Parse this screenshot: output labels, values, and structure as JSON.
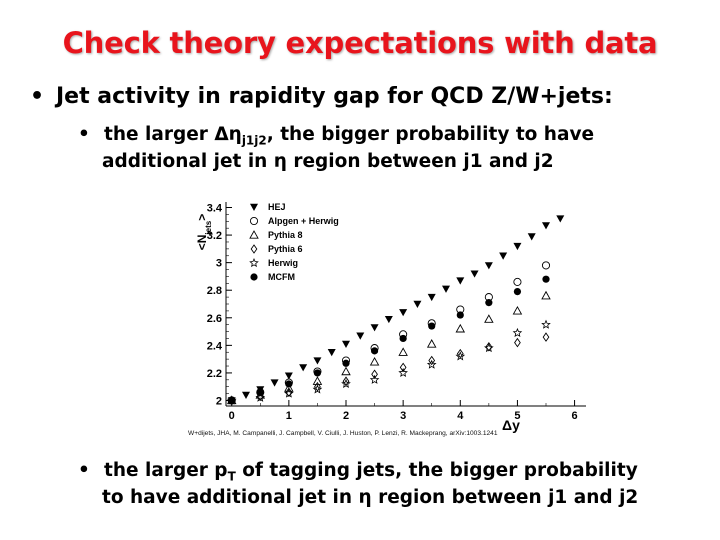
{
  "slide": {
    "title": "Check theory expectations with data",
    "bullet1": {
      "marker": "•",
      "text": "Jet activity in rapidity gap for QCD Z/W+jets:"
    },
    "bullet2": {
      "marker": "•",
      "pre": "the larger ",
      "symbol": "Δη",
      "sub": "j1j2",
      "post": ", the bigger probability to have",
      "line2": "additional jet  in η region between j1 and j2"
    },
    "bullet3": {
      "marker": "•",
      "pre": "the larger p",
      "sub": "T",
      "post": " of tagging jets, the bigger probability",
      "line2": "to have additional jet in η  region between j1 and j2"
    }
  },
  "chart_data": {
    "type": "scatter",
    "ylabel": "<N_jets>",
    "xlabel": "Δy",
    "xlim": [
      -0.1,
      6.2
    ],
    "ylim": [
      1.96,
      3.44
    ],
    "xticks": [
      "0",
      "1",
      "2",
      "3",
      "4",
      "5",
      "6"
    ],
    "yticks": [
      "2",
      "2.2",
      "2.4",
      "2.6",
      "2.8",
      "3",
      "3.2",
      "3.4"
    ],
    "legend_position": "top-left",
    "caption": "W+dijets, JHA, M. Campanelli, J. Campbell, V. Ciulli, J. Huston, P. Lenzi, R. Mackeprang, arXiv:1003.1241",
    "series": [
      {
        "name": "HEJ",
        "marker": "filled-triangle-down",
        "x": [
          0.0,
          0.25,
          0.5,
          0.75,
          1.0,
          1.25,
          1.5,
          1.75,
          2.0,
          2.25,
          2.5,
          2.75,
          3.0,
          3.25,
          3.5,
          3.75,
          4.0,
          4.25,
          4.5,
          4.75,
          5.0,
          5.25,
          5.5,
          5.75
        ],
        "y": [
          2.0,
          2.04,
          2.08,
          2.13,
          2.18,
          2.24,
          2.29,
          2.35,
          2.41,
          2.47,
          2.53,
          2.59,
          2.64,
          2.7,
          2.75,
          2.81,
          2.87,
          2.92,
          2.98,
          3.05,
          3.12,
          3.19,
          3.27,
          3.32
        ]
      },
      {
        "name": "Alpgen + Herwig",
        "marker": "open-circle",
        "x": [
          0.0,
          0.5,
          1.0,
          1.5,
          2.0,
          2.5,
          3.0,
          3.5,
          4.0,
          4.5,
          5.0,
          5.5
        ],
        "y": [
          2.0,
          2.06,
          2.13,
          2.21,
          2.29,
          2.38,
          2.48,
          2.56,
          2.66,
          2.75,
          2.86,
          2.98
        ]
      },
      {
        "name": "Pythia 8",
        "marker": "open-triangle-up",
        "x": [
          0.0,
          0.5,
          1.0,
          1.5,
          2.0,
          2.5,
          3.0,
          3.5,
          4.0,
          4.5,
          5.0,
          5.5
        ],
        "y": [
          2.0,
          2.04,
          2.09,
          2.14,
          2.21,
          2.28,
          2.35,
          2.41,
          2.52,
          2.59,
          2.65,
          2.76
        ]
      },
      {
        "name": "Pythia 6",
        "marker": "open-diamond",
        "x": [
          0.0,
          0.5,
          1.0,
          1.5,
          2.0,
          2.5,
          3.0,
          3.5,
          4.0,
          4.5,
          5.0,
          5.5
        ],
        "y": [
          2.0,
          2.03,
          2.06,
          2.1,
          2.14,
          2.19,
          2.24,
          2.29,
          2.34,
          2.39,
          2.42,
          2.46
        ]
      },
      {
        "name": "Herwig",
        "marker": "open-star",
        "x": [
          0.0,
          0.5,
          1.0,
          1.5,
          2.0,
          2.5,
          3.0,
          3.5,
          4.0,
          4.5,
          5.0,
          5.5
        ],
        "y": [
          2.0,
          2.02,
          2.05,
          2.08,
          2.12,
          2.15,
          2.2,
          2.26,
          2.32,
          2.38,
          2.49,
          2.55
        ]
      },
      {
        "name": "MCFM",
        "marker": "filled-circle",
        "x": [
          0.0,
          0.5,
          1.0,
          1.5,
          2.0,
          2.5,
          3.0,
          3.5,
          4.0,
          4.5,
          5.0,
          5.5
        ],
        "y": [
          2.0,
          2.06,
          2.12,
          2.2,
          2.27,
          2.36,
          2.45,
          2.54,
          2.62,
          2.71,
          2.79,
          2.88
        ]
      }
    ]
  }
}
